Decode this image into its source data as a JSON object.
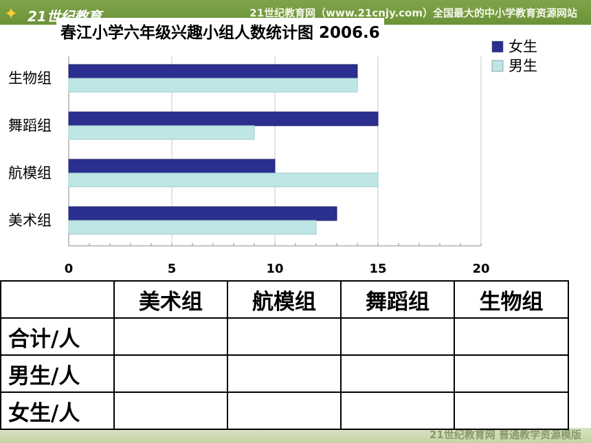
{
  "header": {
    "logo_text": "21世纪教育",
    "site_text": "21世纪教育网（www.21cnjy.com）全国最大的中小学教育资源网站"
  },
  "footer": {
    "text": "21世纪教育网   普通教学资源模版"
  },
  "chart_data": {
    "type": "bar",
    "orientation": "horizontal",
    "title": "春江小学六年级兴趣小组人数统计图",
    "subtitle": "2006.6",
    "categories": [
      "生物组",
      "舞蹈组",
      "航模组",
      "美术组"
    ],
    "series": [
      {
        "name": "女生",
        "values": [
          14,
          15,
          10,
          13
        ],
        "color": "#2b2f8f"
      },
      {
        "name": "男生",
        "values": [
          14,
          9,
          15,
          12
        ],
        "color": "#bfe6e6"
      }
    ],
    "xlim": [
      0,
      20
    ],
    "xticks": [
      "0",
      "5",
      "10",
      "15",
      "20"
    ],
    "grid": true,
    "legend_position": "top-right"
  },
  "table": {
    "header": [
      "",
      "美术组",
      "航模组",
      "舞蹈组",
      "生物组"
    ],
    "rows": [
      {
        "label": "合计/人",
        "cells": [
          "",
          "",
          "",
          ""
        ]
      },
      {
        "label": "男生/人",
        "cells": [
          "",
          "",
          "",
          ""
        ]
      },
      {
        "label": "女生/人",
        "cells": [
          "",
          "",
          "",
          ""
        ]
      }
    ]
  }
}
